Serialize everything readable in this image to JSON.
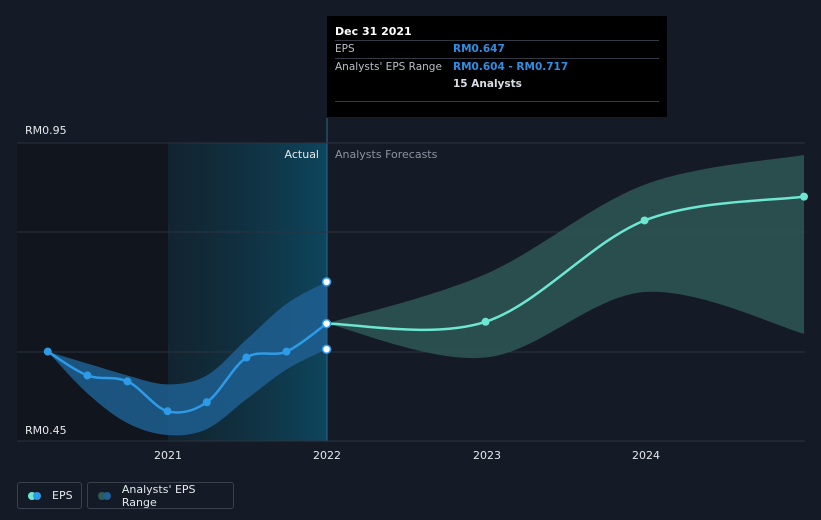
{
  "tooltip": {
    "date": "Dec 31 2021",
    "eps_label": "EPS",
    "eps_value": "RM0.647",
    "range_label": "Analysts' EPS Range",
    "range_value": "RM0.604 - RM0.717",
    "analysts": "15 Analysts"
  },
  "legend": {
    "eps_label": "EPS",
    "range_label": "Analysts' EPS Range"
  },
  "colors": {
    "background": "#151b26",
    "eps_actual": "#2d9be8",
    "eps_forecast": "#6de6d2",
    "range_actual": "#1f5f92",
    "range_forecast": "#2f5a58"
  },
  "chart_data": {
    "type": "line",
    "y_tick_labels": [
      "RM0.95",
      "RM0.45"
    ],
    "ylim": [
      0.45,
      0.95
    ],
    "x_ticks": [
      "2021",
      "2022",
      "2023",
      "2024"
    ],
    "region_labels": {
      "actual": "Actual",
      "forecast": "Analysts Forecasts"
    },
    "grid": true,
    "series": [
      {
        "name": "EPS",
        "kind": "actual",
        "x": [
          "2020-03-31",
          "2020-06-30",
          "2020-09-30",
          "2020-12-31",
          "2021-03-31",
          "2021-06-30",
          "2021-09-30",
          "2021-12-31"
        ],
        "values": [
          0.6,
          0.56,
          0.55,
          0.5,
          0.515,
          0.59,
          0.6,
          0.647
        ]
      },
      {
        "name": "EPS",
        "kind": "forecast",
        "x": [
          "2021-12-31",
          "2022-12-31",
          "2023-12-31",
          "2024-12-31"
        ],
        "values": [
          0.647,
          0.65,
          0.82,
          0.86
        ]
      }
    ],
    "range_actual": {
      "x": [
        "2020-03-31",
        "2020-06-30",
        "2020-09-30",
        "2020-12-31",
        "2021-03-31",
        "2021-06-30",
        "2021-09-30",
        "2021-12-31"
      ],
      "low": [
        0.6,
        0.53,
        0.48,
        0.46,
        0.47,
        0.52,
        0.57,
        0.604
      ],
      "high": [
        0.6,
        0.58,
        0.56,
        0.545,
        0.56,
        0.62,
        0.68,
        0.717
      ]
    },
    "range_forecast": {
      "x": [
        "2021-12-31",
        "2022-12-31",
        "2023-12-31",
        "2024-12-31"
      ],
      "low": [
        0.647,
        0.59,
        0.7,
        0.63
      ],
      "high": [
        0.647,
        0.73,
        0.88,
        0.93
      ]
    },
    "tooltip_markers": [
      0.717,
      0.647,
      0.604
    ]
  }
}
